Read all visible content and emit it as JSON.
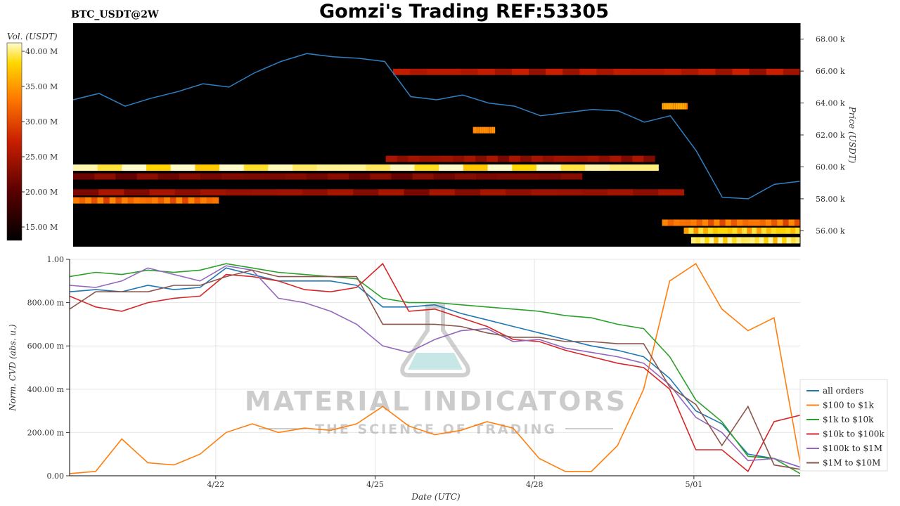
{
  "header": {
    "title": "Gomzi's Trading REF:53305",
    "pair_label": "BTC_USDT@2W"
  },
  "colorbar": {
    "label": "Vol. (USDT)",
    "ticks": [
      "40.00 M",
      "35.00 M",
      "30.00 M",
      "25.00 M",
      "20.00 M",
      "15.00 M"
    ]
  },
  "watermark": {
    "main": "MATERIAL INDICATORS",
    "sub": "THE SCIENCE OF TRADING"
  },
  "colors": {
    "price_line": "#2f7fc1",
    "heat_bg": "#000000"
  },
  "chart_data": [
    {
      "type": "heatmap",
      "name": "orderbook liquidity heatmap with price",
      "ylabel": "Price (USDT)",
      "ylim": [
        55000,
        69000
      ],
      "y_ticks": [
        56000,
        58000,
        60000,
        62000,
        64000,
        66000,
        68000
      ],
      "y_tick_labels": [
        "56.00 k",
        "58.00 k",
        "60.00 k",
        "62.00 k",
        "64.00 k",
        "66.00 k",
        "68.00 k"
      ],
      "x_range": [
        "2025-04-19T00:00",
        "2025-05-03T00:00"
      ],
      "colorbar_range": [
        13000000,
        42000000
      ],
      "liquidity_bands": [
        {
          "price": 59950,
          "start": 0.0,
          "end": 0.805,
          "level": 0.88
        },
        {
          "price": 65950,
          "start": 0.44,
          "end": 1.0,
          "level": 0.35
        },
        {
          "price": 58400,
          "start": 0.0,
          "end": 0.84,
          "level": 0.3
        },
        {
          "price": 57900,
          "start": 0.0,
          "end": 0.2,
          "level": 0.55
        },
        {
          "price": 56500,
          "start": 0.81,
          "end": 1.0,
          "level": 0.55
        },
        {
          "price": 56000,
          "start": 0.84,
          "end": 1.0,
          "level": 0.75
        },
        {
          "price": 55400,
          "start": 0.85,
          "end": 1.0,
          "level": 0.85
        },
        {
          "price": 60500,
          "start": 0.43,
          "end": 0.8,
          "level": 0.3
        },
        {
          "price": 59400,
          "start": 0.0,
          "end": 0.7,
          "level": 0.25
        },
        {
          "price": 62300,
          "start": 0.55,
          "end": 0.58,
          "level": 0.6
        },
        {
          "price": 63800,
          "start": 0.81,
          "end": 0.845,
          "level": 0.65
        }
      ],
      "price_series": {
        "times": [
          "2025-04-19T00:00",
          "2025-04-19T12:00",
          "2025-04-20T00:00",
          "2025-04-20T12:00",
          "2025-04-21T00:00",
          "2025-04-21T12:00",
          "2025-04-22T00:00",
          "2025-04-22T12:00",
          "2025-04-23T00:00",
          "2025-04-23T12:00",
          "2025-04-24T00:00",
          "2025-04-24T12:00",
          "2025-04-25T00:00",
          "2025-04-25T12:00",
          "2025-04-26T00:00",
          "2025-04-26T12:00",
          "2025-04-27T00:00",
          "2025-04-27T12:00",
          "2025-04-28T00:00",
          "2025-04-28T12:00",
          "2025-04-29T00:00",
          "2025-04-29T12:00",
          "2025-04-30T00:00",
          "2025-04-30T12:00",
          "2025-05-01T00:00",
          "2025-05-01T12:00",
          "2025-05-02T00:00",
          "2025-05-02T12:00",
          "2025-05-03T00:00"
        ],
        "values": [
          64200,
          64600,
          63800,
          64300,
          64700,
          65200,
          65000,
          65900,
          66600,
          67100,
          66900,
          66800,
          66600,
          64400,
          64200,
          64500,
          64000,
          63800,
          63200,
          63400,
          63600,
          63500,
          62800,
          63200,
          61000,
          58100,
          58000,
          58900,
          59100
        ]
      }
    },
    {
      "type": "line",
      "name": "normalized CVD by order size",
      "xlabel": "Date (UTC)",
      "ylabel": "Norm. CVD (abs. u.)",
      "ylim": [
        0,
        1
      ],
      "y_ticks": [
        0,
        0.2,
        0.4,
        0.6,
        0.8,
        1.0
      ],
      "y_tick_labels": [
        "0.00",
        "200.00 m",
        "400.00 m",
        "600.00 m",
        "800.00 m",
        "1.00"
      ],
      "x_range": [
        "2025-04-19T06:00",
        "2025-05-03T00:00"
      ],
      "x_ticks": [
        "2025-04-22T00:00",
        "2025-04-25T00:00",
        "2025-04-28T00:00",
        "2025-05-01T00:00"
      ],
      "x_tick_labels": [
        "4/22",
        "4/25",
        "4/28",
        "5/01"
      ],
      "legend_position": "right",
      "x": [
        0,
        0.5,
        1,
        1.5,
        2,
        2.5,
        3,
        3.5,
        4,
        4.5,
        5,
        5.5,
        6,
        6.5,
        7,
        7.5,
        8,
        8.5,
        9,
        9.5,
        10,
        10.5,
        11,
        11.5,
        12,
        12.5,
        13,
        13.5,
        14
      ],
      "series": [
        {
          "name": "all orders",
          "color": "#1f77b4",
          "values": [
            0.85,
            0.86,
            0.85,
            0.88,
            0.86,
            0.87,
            0.96,
            0.93,
            0.9,
            0.9,
            0.9,
            0.88,
            0.78,
            0.78,
            0.79,
            0.75,
            0.72,
            0.69,
            0.66,
            0.63,
            0.6,
            0.58,
            0.55,
            0.45,
            0.3,
            0.24,
            0.1,
            0.08,
            0.04
          ]
        },
        {
          "name": "$100 to $1k",
          "color": "#ff7f0e",
          "values": [
            0.01,
            0.02,
            0.17,
            0.06,
            0.05,
            0.1,
            0.2,
            0.24,
            0.2,
            0.22,
            0.21,
            0.24,
            0.32,
            0.23,
            0.19,
            0.21,
            0.25,
            0.22,
            0.08,
            0.02,
            0.02,
            0.14,
            0.4,
            0.9,
            0.98,
            0.77,
            0.67,
            0.73,
            0.06
          ]
        },
        {
          "name": "$1k to $10k",
          "color": "#2ca02c",
          "values": [
            0.92,
            0.94,
            0.93,
            0.95,
            0.94,
            0.95,
            0.98,
            0.96,
            0.94,
            0.93,
            0.92,
            0.91,
            0.82,
            0.8,
            0.8,
            0.79,
            0.78,
            0.77,
            0.76,
            0.74,
            0.73,
            0.7,
            0.68,
            0.55,
            0.35,
            0.25,
            0.09,
            0.08,
            0.01
          ]
        },
        {
          "name": "$10k to $100k",
          "color": "#d62728",
          "values": [
            0.83,
            0.78,
            0.76,
            0.8,
            0.82,
            0.83,
            0.93,
            0.92,
            0.9,
            0.86,
            0.85,
            0.87,
            0.98,
            0.76,
            0.77,
            0.73,
            0.69,
            0.63,
            0.62,
            0.58,
            0.55,
            0.52,
            0.5,
            0.4,
            0.12,
            0.12,
            0.02,
            0.25,
            0.28
          ]
        },
        {
          "name": "$100k to $1M",
          "color": "#9467bd",
          "values": [
            0.88,
            0.87,
            0.9,
            0.96,
            0.93,
            0.9,
            0.97,
            0.95,
            0.82,
            0.8,
            0.76,
            0.7,
            0.6,
            0.57,
            0.63,
            0.67,
            0.68,
            0.62,
            0.63,
            0.59,
            0.57,
            0.55,
            0.52,
            0.42,
            0.27,
            0.2,
            0.07,
            0.08,
            0.04
          ]
        },
        {
          "name": "$1M to $10M",
          "color": "#8c564b",
          "values": [
            0.77,
            0.85,
            0.85,
            0.85,
            0.88,
            0.88,
            0.92,
            0.95,
            0.92,
            0.92,
            0.92,
            0.92,
            0.7,
            0.7,
            0.7,
            0.69,
            0.66,
            0.64,
            0.64,
            0.62,
            0.62,
            0.61,
            0.61,
            0.41,
            0.33,
            0.14,
            0.32,
            0.05,
            0.03
          ]
        }
      ]
    }
  ]
}
